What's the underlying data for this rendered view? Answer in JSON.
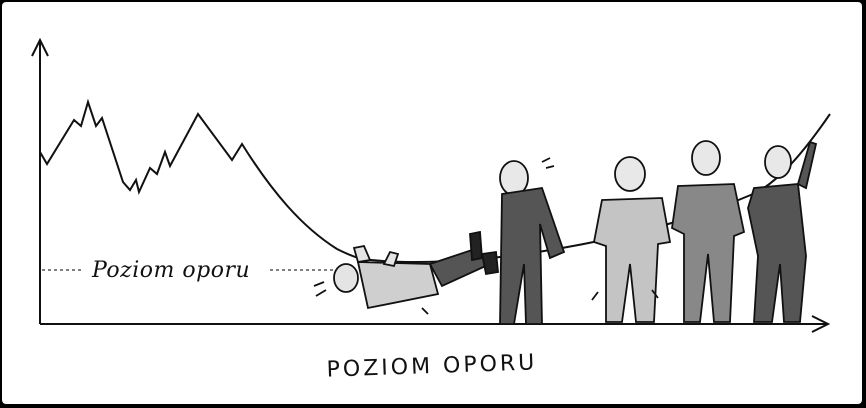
{
  "cartoon": {
    "inline_label": "Poziom oporu",
    "caption": "POZIOM OPORU"
  },
  "colors": {
    "background": "#ffffff",
    "ink": "#111111",
    "frame": "#000000"
  }
}
